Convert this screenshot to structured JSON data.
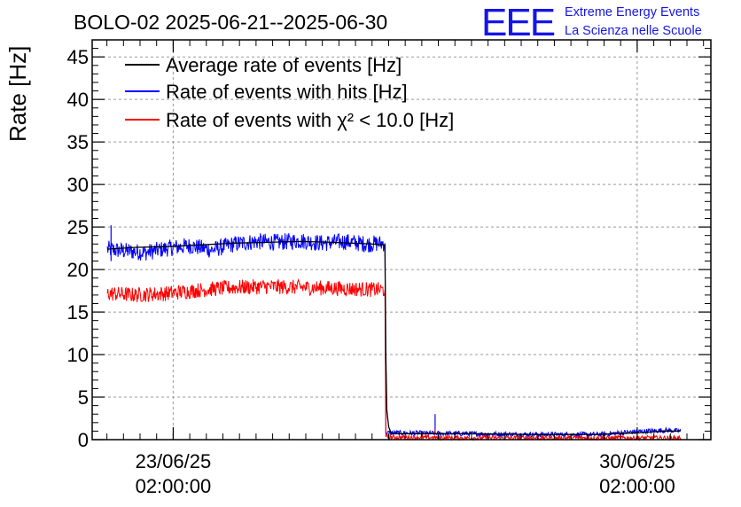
{
  "header": {
    "title": "BOLO-02 2025-06-21--2025-06-30",
    "logo_text": "EEE",
    "logo_line1": "Extreme Energy Events",
    "logo_line2": "La Scienza nelle Scuole"
  },
  "chart_data": {
    "type": "line",
    "title": "BOLO-02 2025-06-21--2025-06-30",
    "xlabel": "",
    "ylabel": "Rate [Hz]",
    "x_axis_type": "time",
    "xlim": [
      "2025-06-21 20:40",
      "2025-07-01 04:40"
    ],
    "ylim": [
      0,
      47
    ],
    "yticks": [
      0,
      5,
      10,
      15,
      20,
      25,
      30,
      35,
      40,
      45
    ],
    "xticks": [
      {
        "x": "2025-06-23 02:00:00",
        "label_date": "23/06/25",
        "label_time": "02:00:00"
      },
      {
        "x": "2025-06-30 02:00:00",
        "label_date": "30/06/25",
        "label_time": "02:00:00"
      }
    ],
    "grid": true,
    "legend_position": "top-left",
    "series": [
      {
        "name": "Average rate of events [Hz]",
        "color": "#000000",
        "points": [
          [
            "2025-06-22 02:10",
            22.4
          ],
          [
            "2025-06-22 12:00",
            22.6
          ],
          [
            "2025-06-23 00:00",
            22.7
          ],
          [
            "2025-06-23 12:00",
            22.9
          ],
          [
            "2025-06-24 00:00",
            23.1
          ],
          [
            "2025-06-24 12:00",
            23.2
          ],
          [
            "2025-06-25 00:00",
            23.3
          ],
          [
            "2025-06-25 12:00",
            23.2
          ],
          [
            "2025-06-26 02:00",
            23.0
          ],
          [
            "2025-06-26 06:40",
            22.9
          ],
          [
            "2025-06-26 07:00",
            10.0
          ],
          [
            "2025-06-26 07:20",
            3.5
          ],
          [
            "2025-06-26 08:00",
            1.5
          ],
          [
            "2025-06-26 09:00",
            0.7
          ],
          [
            "2025-06-27 12:00",
            0.7
          ],
          [
            "2025-06-28 12:00",
            0.6
          ],
          [
            "2025-06-29 12:00",
            0.6
          ],
          [
            "2025-06-30 02:00",
            0.8
          ],
          [
            "2025-06-30 12:00",
            1.0
          ],
          [
            "2025-06-30 17:40",
            1.0
          ]
        ]
      },
      {
        "name": "Rate of events with hits [Hz]",
        "color": "#0000ff",
        "points": [
          [
            "2025-06-22 02:10",
            22.4
          ],
          [
            "2025-06-22 08:00",
            22.2
          ],
          [
            "2025-06-22 16:00",
            22.0
          ],
          [
            "2025-06-23 00:00",
            22.5
          ],
          [
            "2025-06-23 08:00",
            22.8
          ],
          [
            "2025-06-23 16:00",
            22.3
          ],
          [
            "2025-06-24 00:00",
            23.0
          ],
          [
            "2025-06-24 08:00",
            23.3
          ],
          [
            "2025-06-24 16:00",
            23.2
          ],
          [
            "2025-06-25 00:00",
            23.4
          ],
          [
            "2025-06-25 08:00",
            23.1
          ],
          [
            "2025-06-25 16:00",
            23.3
          ],
          [
            "2025-06-26 00:00",
            23.0
          ],
          [
            "2025-06-26 06:40",
            23.1
          ],
          [
            "2025-06-26 07:00",
            0.8
          ],
          [
            "2025-06-27 12:00",
            0.7
          ],
          [
            "2025-06-28 12:00",
            0.6
          ],
          [
            "2025-06-29 12:00",
            0.6
          ],
          [
            "2025-06-30 00:00",
            0.9
          ],
          [
            "2025-06-30 12:00",
            1.1
          ],
          [
            "2025-06-30 17:40",
            1.0
          ]
        ],
        "noise": 1.0,
        "spikes": [
          [
            "2025-06-27 00:50",
            3.0
          ],
          [
            "2025-06-22 03:30",
            25.2
          ]
        ]
      },
      {
        "name": "Rate of events with χ² < 10.0 [Hz]",
        "color": "#ff0000",
        "points": [
          [
            "2025-06-22 02:10",
            17.2
          ],
          [
            "2025-06-22 12:00",
            17.0
          ],
          [
            "2025-06-23 00:00",
            17.2
          ],
          [
            "2025-06-23 12:00",
            17.6
          ],
          [
            "2025-06-24 00:00",
            17.9
          ],
          [
            "2025-06-24 12:00",
            18.0
          ],
          [
            "2025-06-25 00:00",
            17.9
          ],
          [
            "2025-06-25 12:00",
            17.8
          ],
          [
            "2025-06-26 06:40",
            17.6
          ],
          [
            "2025-06-26 07:00",
            0.3
          ],
          [
            "2025-06-27 12:00",
            0.2
          ],
          [
            "2025-06-28 12:00",
            0.2
          ],
          [
            "2025-06-29 12:00",
            0.2
          ],
          [
            "2025-06-30 17:40",
            0.2
          ]
        ],
        "noise": 0.9,
        "spikes": [
          [
            "2025-06-27 00:50",
            1.2
          ]
        ]
      }
    ]
  }
}
